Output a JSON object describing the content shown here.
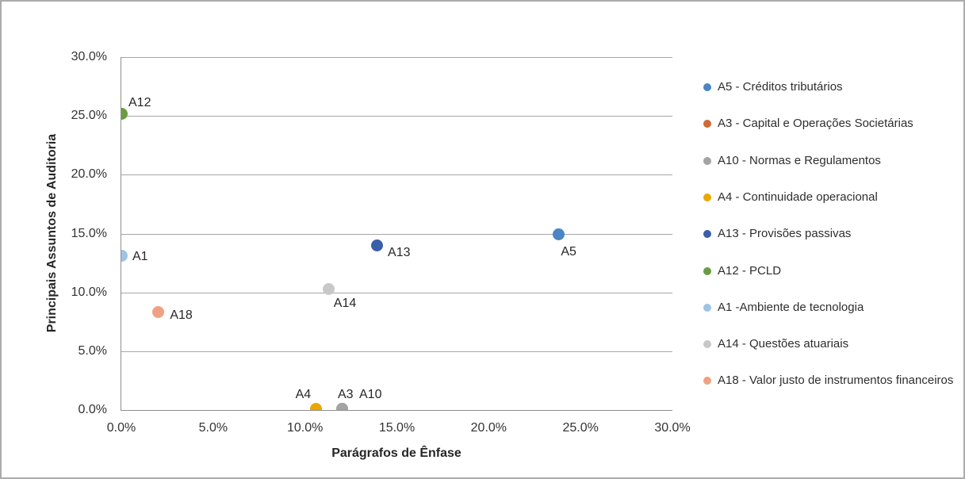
{
  "chart_data": {
    "type": "scatter",
    "title": "",
    "xlabel": "Parágrafos de Ênfase",
    "ylabel": "Principais Assuntos de Auditoria",
    "unit": "%",
    "xlim": [
      0,
      30
    ],
    "ylim": [
      0,
      30
    ],
    "x_tick_values": [
      0,
      5,
      10,
      15,
      20,
      25,
      30
    ],
    "x_tick_labels": [
      "0.0%",
      "5.0%",
      "10.0%",
      "15.0%",
      "20.0%",
      "25.0%",
      "30.0%"
    ],
    "y_tick_values": [
      0,
      5,
      10,
      15,
      20,
      25,
      30
    ],
    "y_tick_labels": [
      "0.0%",
      "5.0%",
      "10.0%",
      "15.0%",
      "20.0%",
      "25.0%",
      "30.0%"
    ],
    "grid": "horizontal",
    "legend_position": "right",
    "gridline_color": "#a6a6a6",
    "axis_color": "#8f8f8f",
    "series": [
      {
        "id": "A5",
        "legend": "A5 - Créditos tributários",
        "color": "#4a86c5",
        "x": 23.8,
        "y": 14.9,
        "point_label": "A5",
        "label_offset": [
          3,
          13
        ]
      },
      {
        "id": "A3",
        "legend": "A3 - Capital e Operações Societárias",
        "color": "#cf6a33",
        "x": 12.0,
        "y": 0.1,
        "point_label": "A3",
        "label_offset": [
          -5,
          -27
        ]
      },
      {
        "id": "A10",
        "legend": "A10 - Normas e Regulamentos",
        "color": "#a3a3a3",
        "x": 12.0,
        "y": 0.1,
        "point_label": "A10",
        "label_offset": [
          22,
          -27
        ]
      },
      {
        "id": "A4",
        "legend": "A4 - Continuidade operacional",
        "color": "#e9a800",
        "x": 10.6,
        "y": 0.1,
        "point_label": "A4",
        "label_offset": [
          -26,
          -27
        ]
      },
      {
        "id": "A13",
        "legend": "A13 - Provisões passivas",
        "color": "#3a5ea9",
        "x": 13.9,
        "y": 14.0,
        "point_label": "A13",
        "label_offset": [
          14,
          1
        ]
      },
      {
        "id": "A12",
        "legend": "A12 - PCLD",
        "color": "#6b9c44",
        "x": 0.0,
        "y": 25.2,
        "point_label": "A12",
        "label_offset": [
          9,
          -22
        ]
      },
      {
        "id": "A1",
        "legend": "A1 -Ambiente de tecnologia",
        "color": "#9ec3e5",
        "x": 0.0,
        "y": 13.1,
        "point_label": "A1",
        "label_offset": [
          14,
          -8
        ]
      },
      {
        "id": "A14",
        "legend": "A14 - Questões atuariais",
        "color": "#c8c8c8",
        "x": 11.3,
        "y": 10.3,
        "point_label": "A14",
        "label_offset": [
          6,
          10
        ]
      },
      {
        "id": "A18",
        "legend": "A18 - Valor justo de instrumentos financeiros",
        "color": "#f0a183",
        "x": 2.0,
        "y": 8.3,
        "point_label": "A18",
        "label_offset": [
          15,
          -5
        ]
      }
    ]
  }
}
